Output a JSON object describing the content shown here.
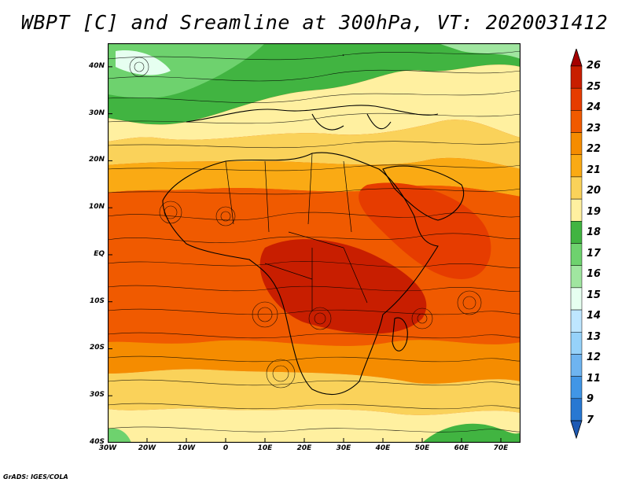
{
  "title": "WBPT [C] and Sreamline at 300hPa, VT: 2020031412",
  "footer": "GrADS: IGES/COLA",
  "map": {
    "lon_min": -30,
    "lon_max": 75,
    "lat_min": -40,
    "lat_max": 45,
    "lat_ticks": [
      {
        "lat": 40,
        "label": "40N"
      },
      {
        "lat": 30,
        "label": "30N"
      },
      {
        "lat": 20,
        "label": "20N"
      },
      {
        "lat": 10,
        "label": "10N"
      },
      {
        "lat": 0,
        "label": "EQ"
      },
      {
        "lat": -10,
        "label": "10S"
      },
      {
        "lat": -20,
        "label": "20S"
      },
      {
        "lat": -30,
        "label": "30S"
      },
      {
        "lat": -40,
        "label": "40S"
      }
    ],
    "lon_ticks": [
      {
        "lon": -30,
        "label": "30W"
      },
      {
        "lon": -20,
        "label": "20W"
      },
      {
        "lon": -10,
        "label": "10W"
      },
      {
        "lon": 0,
        "label": "0"
      },
      {
        "lon": 10,
        "label": "10E"
      },
      {
        "lon": 20,
        "label": "20E"
      },
      {
        "lon": 30,
        "label": "30E"
      },
      {
        "lon": 40,
        "label": "40E"
      },
      {
        "lon": 50,
        "label": "50E"
      },
      {
        "lon": 60,
        "label": "60E"
      },
      {
        "lon": 70,
        "label": "70E"
      }
    ]
  },
  "colorbar": {
    "labels": [
      "26",
      "25",
      "24",
      "23",
      "22",
      "21",
      "20",
      "19",
      "18",
      "17",
      "16",
      "15",
      "14",
      "13",
      "12",
      "11",
      "9",
      "7"
    ],
    "colors": [
      "#a50000",
      "#c81e00",
      "#e63c00",
      "#f05a00",
      "#f58c00",
      "#faaa14",
      "#fad25a",
      "#fff0a0",
      "#41b441",
      "#6ed26e",
      "#a0e6a0",
      "#e6fff0",
      "#bee6ff",
      "#96d2fa",
      "#6eb4f0",
      "#4196e6",
      "#2878d2",
      "#1e5ab4"
    ]
  }
}
